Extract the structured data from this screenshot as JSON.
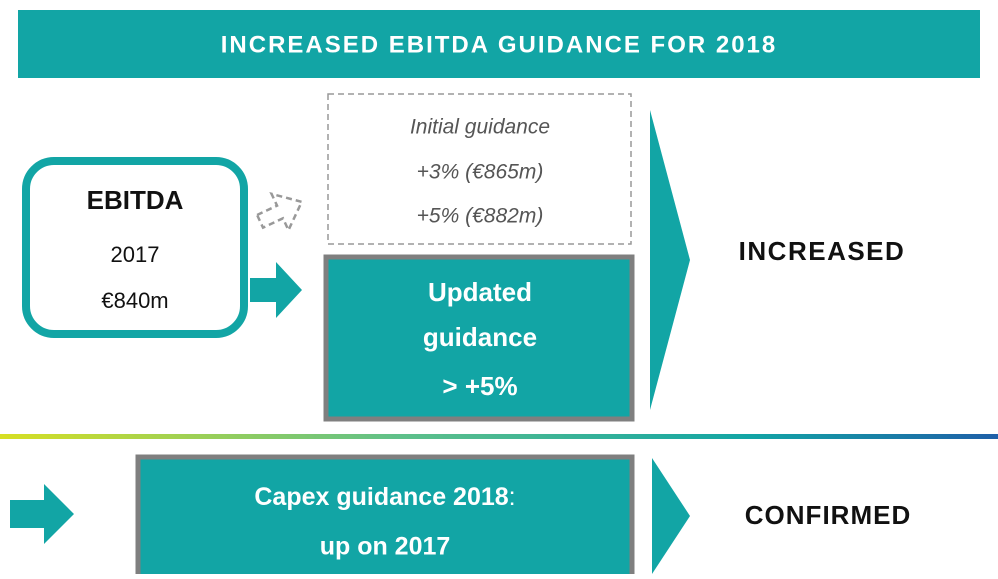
{
  "header": {
    "title": "INCREASED EBITDA GUIDANCE FOR 2018"
  },
  "ebitda": {
    "label": "EBITDA",
    "year": "2017",
    "value": "€840m"
  },
  "initial_guidance": {
    "title": "Initial guidance",
    "lines": [
      "+3% (€865m)",
      "+5% (€882m)"
    ]
  },
  "updated_guidance": {
    "lines": [
      "Updated",
      "guidance",
      "> +5%"
    ]
  },
  "ebitda_result": "INCREASED",
  "capex": {
    "label": "Capex guidance 2018",
    "separator": ":",
    "detail": "up on 2017"
  },
  "capex_result": "CONFIRMED"
}
